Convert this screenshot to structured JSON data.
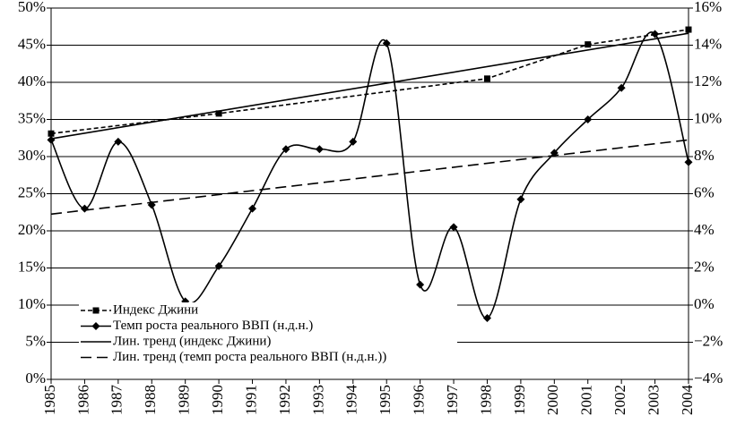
{
  "chart_data": {
    "type": "line",
    "xlim": [
      1985,
      2004
    ],
    "xticks": [
      1985,
      1986,
      1987,
      1988,
      1989,
      1990,
      1991,
      1992,
      1993,
      1994,
      1995,
      1996,
      1997,
      1998,
      1999,
      2000,
      2001,
      2002,
      2003,
      2004
    ],
    "ylim": [
      0,
      50
    ],
    "yticks": [
      {
        "value": 0,
        "label": "0%"
      },
      {
        "value": 5,
        "label": "5%"
      },
      {
        "value": 10,
        "label": "10%"
      },
      {
        "value": 15,
        "label": "15%"
      },
      {
        "value": 20,
        "label": "20%"
      },
      {
        "value": 25,
        "label": "25%"
      },
      {
        "value": 30,
        "label": "30%"
      },
      {
        "value": 35,
        "label": "35%"
      },
      {
        "value": 40,
        "label": "40%"
      },
      {
        "value": 45,
        "label": "45%"
      },
      {
        "value": 50,
        "label": "50%"
      }
    ],
    "y2lim": [
      -4,
      16
    ],
    "y2ticks": [
      {
        "value": -4,
        "label": "−4%"
      },
      {
        "value": -2,
        "label": "−2%"
      },
      {
        "value": 0,
        "label": "0%"
      },
      {
        "value": 2,
        "label": "2%"
      },
      {
        "value": 4,
        "label": "4%"
      },
      {
        "value": 6,
        "label": "6%"
      },
      {
        "value": 8,
        "label": "8%"
      },
      {
        "value": 10,
        "label": "10%"
      },
      {
        "value": 12,
        "label": "12%"
      },
      {
        "value": 14,
        "label": "14%"
      },
      {
        "value": 16,
        "label": "16%"
      }
    ],
    "grid": true,
    "legend": "lower left",
    "series": [
      {
        "name": "Индекс Джини",
        "color": "#000000",
        "dash": "short",
        "marker": "square",
        "x": [
          1985,
          1990,
          1998,
          2001,
          2004
        ],
        "values": [
          33.1,
          35.8,
          40.5,
          45.1,
          47.1
        ]
      },
      {
        "name": "Темп роста реального ВВП (н.д.н.)",
        "color": "#000000",
        "marker": "diamond",
        "smooth": true,
        "axis": "y2",
        "x": [
          1985,
          1986,
          1987,
          1988,
          1989,
          1990,
          1991,
          1992,
          1993,
          1994,
          1995,
          1996,
          1997,
          1998,
          1999,
          2000,
          2001,
          2002,
          2003,
          2004
        ],
        "values": [
          8.9,
          5.2,
          8.8,
          5.4,
          0.2,
          2.1,
          5.2,
          8.4,
          8.4,
          8.8,
          14.1,
          1.1,
          4.2,
          -0.7,
          5.7,
          8.2,
          10.0,
          11.7,
          14.6,
          7.7
        ]
      },
      {
        "name": "Лин. тренд (индекс Джини)",
        "color": "#000000",
        "x": [
          1985,
          2004
        ],
        "values": [
          32.4,
          46.6
        ]
      },
      {
        "name": "Лин. тренд (темп роста реального ВВП (н.д.н.))",
        "color": "#000000",
        "dash": "long",
        "axis": "y2",
        "x": [
          1985,
          2004
        ],
        "values": [
          4.9,
          8.9
        ]
      }
    ]
  }
}
